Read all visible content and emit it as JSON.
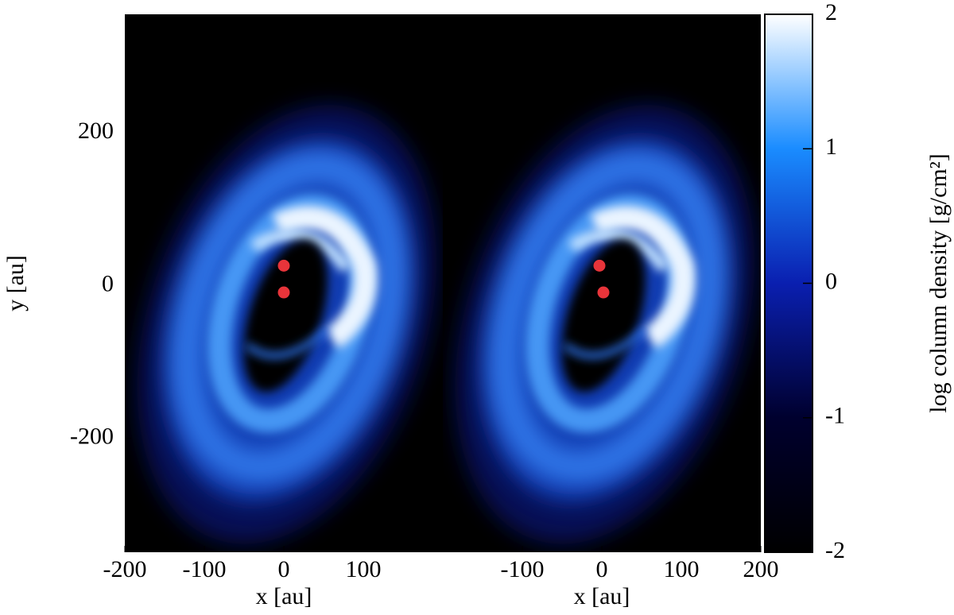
{
  "chart_data": [
    {
      "type": "image",
      "xlabel": "x [au]",
      "ylabel": "y [au]",
      "xlim": [
        -200,
        200
      ],
      "xticks": [
        -200,
        -100,
        0,
        100
      ],
      "ylim": [
        -349,
        355
      ],
      "yticks": [
        -200,
        0,
        200
      ],
      "sinks": {
        "x": [
          0,
          0
        ],
        "y": [
          26,
          -9
        ],
        "color": "#e8343a"
      }
    },
    {
      "type": "image",
      "xlabel": "x [au]",
      "xlim": [
        -200,
        200
      ],
      "xticks": [
        -100,
        0,
        100,
        200
      ],
      "ylim": [
        -349,
        355
      ],
      "sinks": {
        "x": [
          -3,
          2
        ],
        "y": [
          26,
          -9
        ],
        "color": "#e8343a"
      }
    },
    {
      "type": "colorbar",
      "label": "log column density [g/cm²]",
      "lim": [
        -2,
        2
      ],
      "ticks": [
        -2,
        -1,
        0,
        1,
        2
      ],
      "colors": [
        "#000000",
        "#00002e",
        "#0a1fb0",
        "#1a8cff",
        "#ffffff"
      ]
    }
  ]
}
